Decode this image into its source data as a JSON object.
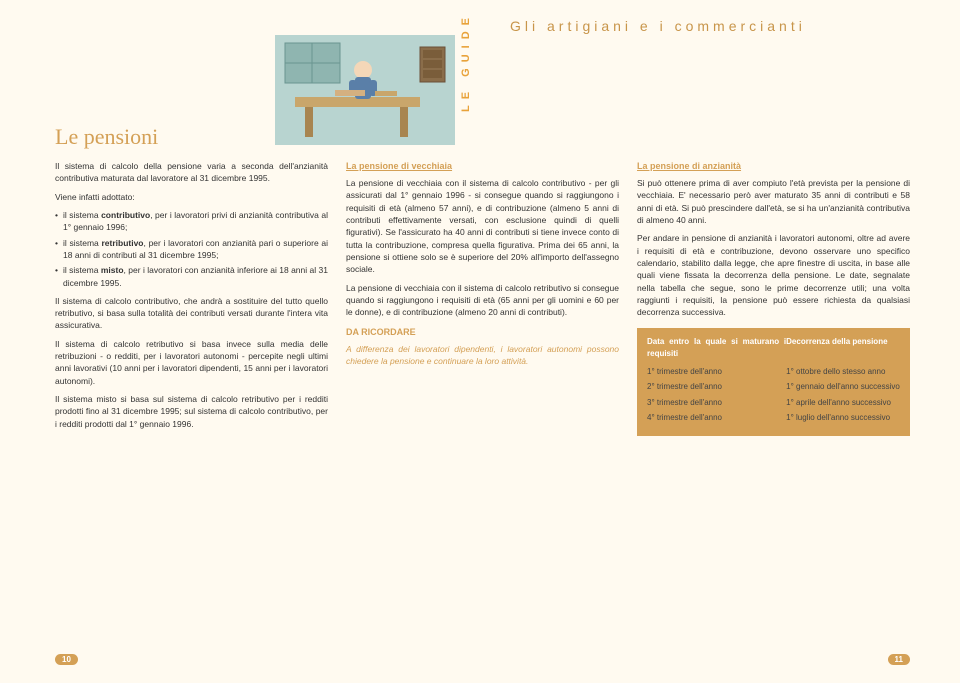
{
  "header": {
    "guide_label": "LE GUIDE",
    "title": "Gli artigiani e i commercianti"
  },
  "main_title": "Le pensioni",
  "col1": {
    "intro1": "Il sistema di calcolo della pensione varia a seconda dell'anzianità contributiva maturata dal lavoratore al 31 dicembre 1995.",
    "intro2": "Viene infatti adottato:",
    "bullets": [
      "il sistema <b>contributivo</b>, per i lavoratori privi di anzianità contributiva al 1° gennaio 1996;",
      "il sistema <b>retributivo</b>, per i lavoratori con anzianità pari o superiore ai 18 anni di contributi al 31 dicembre 1995;",
      "il sistema <b>misto</b>, per i lavoratori con anzianità inferiore ai 18 anni al 31 dicembre 1995."
    ],
    "p3": "Il sistema di calcolo contributivo, che andrà a sostituire del tutto quello retributivo, si basa sulla totalità dei contributi versati durante l'intera vita assicurativa.",
    "p4": "Il sistema di calcolo retributivo si basa invece sulla media delle retribuzioni - o redditi, per i lavoratori autonomi - percepite negli ultimi anni lavorativi (10 anni per i lavoratori dipendenti, 15 anni per i lavoratori autonomi).",
    "p5": "Il sistema misto si basa sul sistema di calcolo retributivo per i redditi prodotti fino al 31 dicembre 1995; sul sistema di calcolo contributivo, per i redditi prodotti dal 1° gennaio 1996."
  },
  "col2": {
    "heading": "La pensione di vecchiaia",
    "p1": "La pensione di vecchiaia con il sistema di calcolo contributivo - per gli assicurati dal 1° gennaio 1996 - si consegue quando si raggiungono i requisiti di età (almeno 57 anni), e di contribuzione (almeno 5 anni di contributi effettivamente versati, con esclusione quindi di quelli figurativi). Se l'assicurato ha 40 anni di contributi si tiene invece conto di tutta la contribuzione, compresa quella figurativa. Prima dei 65 anni, la pensione si ottiene solo se è superiore del 20% all'importo dell'assegno sociale.",
    "p2": "La pensione di vecchiaia con il sistema di calcolo retributivo si consegue quando si raggiungono i requisiti di età (65 anni per gli uomini e 60 per le donne), e di contribuzione (almeno 20 anni di contributi).",
    "da_ricordare_label": "DA RICORDARE",
    "da_ricordare_text": "A differenza dei lavoratori dipendenti, i lavoratori autonomi possono chiedere la pensione e continuare la loro attività."
  },
  "col3": {
    "heading": "La pensione di anzianità",
    "p1": "Si può ottenere prima di aver compiuto l'età prevista per la pensione di vecchiaia. E' necessario però aver maturato 35 anni di contributi e 58 anni di età. Si può prescindere dall'età, se si ha un'anzianità contributiva di almeno 40 anni.",
    "p2": "Per andare in pensione di anzianità i lavoratori autonomi, oltre ad avere i requisiti di età e contribuzione, devono osservare uno specifico calendario, stabilito dalla legge, che apre finestre di uscita, in base alle quali viene fissata la decorrenza della pensione. Le date, segnalate nella tabella che segue, sono le prime decorrenze utili; una volta raggiunti i requisiti, la pensione può essere richiesta da qualsiasi decorrenza successiva.",
    "table": {
      "head_left": "Data entro la quale si maturano i requisiti",
      "head_right": "Decorrenza della pensione",
      "rows": [
        {
          "left": "1° trimestre dell'anno",
          "right": "1° ottobre dello stesso anno"
        },
        {
          "left": "2° trimestre dell'anno",
          "right": "1° gennaio dell'anno successivo"
        },
        {
          "left": "3° trimestre dell'anno",
          "right": "1° aprile dell'anno successivo"
        },
        {
          "left": "4° trimestre dell'anno",
          "right": "1° luglio dell'anno successivo"
        }
      ]
    }
  },
  "page_left": "10",
  "page_right": "11",
  "colors": {
    "accent": "#d4a056",
    "background": "#fffaf0"
  }
}
